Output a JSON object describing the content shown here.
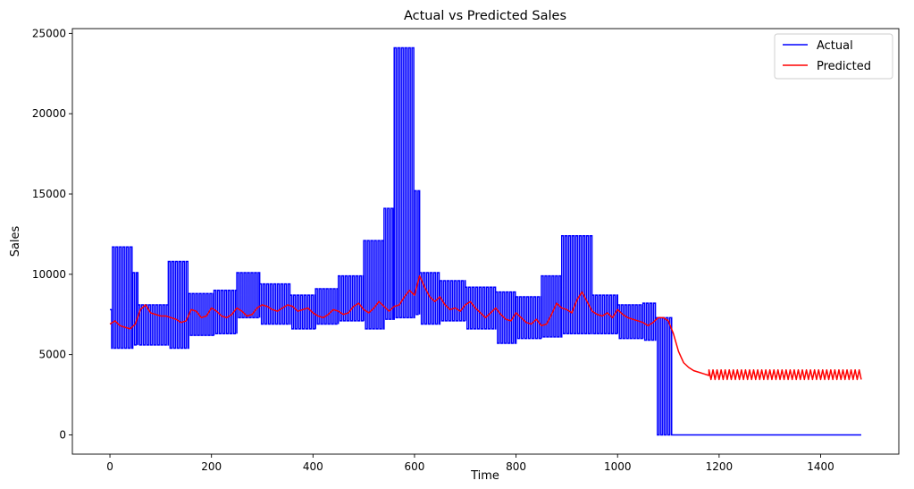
{
  "chart_data": {
    "type": "line",
    "title": "Actual vs Predicted Sales",
    "xlabel": "Time",
    "ylabel": "Sales",
    "xlim": [
      -74,
      1554
    ],
    "ylim": [
      -1200,
      25300
    ],
    "xticks": [
      0,
      200,
      400,
      600,
      800,
      1000,
      1200,
      1400
    ],
    "xtick_labels": [
      "0",
      "200",
      "400",
      "600",
      "800",
      "1000",
      "1200",
      "1400"
    ],
    "yticks": [
      0,
      5000,
      10000,
      15000,
      20000,
      25000
    ],
    "ytick_labels": [
      "0",
      "5000",
      "10000",
      "15000",
      "20000",
      "25000"
    ],
    "grid": false,
    "legend_position": "top-right",
    "series": [
      {
        "name": "Actual",
        "color": "#0000ff",
        "style": "oscillating",
        "period": 7,
        "segments": [
          {
            "x": [
              0,
              5
            ],
            "high": 7800,
            "low": 5400
          },
          {
            "x": [
              5,
              45
            ],
            "high": 11700,
            "low": 5400
          },
          {
            "x": [
              45,
              55
            ],
            "high": 10100,
            "low": 5600
          },
          {
            "x": [
              55,
              115
            ],
            "high": 8100,
            "low": 5600
          },
          {
            "x": [
              115,
              155
            ],
            "high": 10800,
            "low": 5400
          },
          {
            "x": [
              155,
              205
            ],
            "high": 8800,
            "low": 6200
          },
          {
            "x": [
              205,
              250
            ],
            "high": 9000,
            "low": 6300
          },
          {
            "x": [
              250,
              295
            ],
            "high": 10100,
            "low": 7300
          },
          {
            "x": [
              295,
              355
            ],
            "high": 9400,
            "low": 6900
          },
          {
            "x": [
              355,
              405
            ],
            "high": 8700,
            "low": 6600
          },
          {
            "x": [
              405,
              450
            ],
            "high": 9100,
            "low": 6900
          },
          {
            "x": [
              450,
              500
            ],
            "high": 9900,
            "low": 7100
          },
          {
            "x": [
              500,
              540
            ],
            "high": 12100,
            "low": 6600
          },
          {
            "x": [
              540,
              560
            ],
            "high": 14100,
            "low": 7200
          },
          {
            "x": [
              560,
              600
            ],
            "high": 24100,
            "low": 7300
          },
          {
            "x": [
              600,
              610
            ],
            "high": 15200,
            "low": 7500
          },
          {
            "x": [
              610,
              650
            ],
            "high": 10100,
            "low": 6900
          },
          {
            "x": [
              650,
              700
            ],
            "high": 9600,
            "low": 7100
          },
          {
            "x": [
              700,
              760
            ],
            "high": 9200,
            "low": 6600
          },
          {
            "x": [
              760,
              800
            ],
            "high": 8900,
            "low": 5700
          },
          {
            "x": [
              800,
              850
            ],
            "high": 8600,
            "low": 6000
          },
          {
            "x": [
              850,
              890
            ],
            "high": 9900,
            "low": 6100
          },
          {
            "x": [
              890,
              950
            ],
            "high": 12400,
            "low": 6300
          },
          {
            "x": [
              950,
              1000
            ],
            "high": 8700,
            "low": 6300
          },
          {
            "x": [
              1000,
              1050
            ],
            "high": 8100,
            "low": 6000
          },
          {
            "x": [
              1050,
              1075
            ],
            "high": 8200,
            "low": 5900
          },
          {
            "x": [
              1075,
              1110
            ],
            "high": 7300,
            "low": 0
          },
          {
            "x": [
              1110,
              1480
            ],
            "high": 0,
            "low": 0
          }
        ]
      },
      {
        "name": "Predicted",
        "color": "#ff0000",
        "style": "line",
        "x": [
          0,
          10,
          20,
          30,
          40,
          50,
          60,
          70,
          80,
          90,
          100,
          110,
          120,
          130,
          140,
          150,
          160,
          170,
          180,
          190,
          200,
          210,
          220,
          230,
          240,
          250,
          260,
          270,
          280,
          290,
          300,
          310,
          320,
          330,
          340,
          350,
          360,
          370,
          380,
          390,
          400,
          410,
          420,
          430,
          440,
          450,
          460,
          470,
          480,
          490,
          500,
          510,
          520,
          530,
          540,
          550,
          560,
          570,
          580,
          590,
          600,
          610,
          620,
          630,
          640,
          650,
          660,
          670,
          680,
          690,
          700,
          710,
          720,
          730,
          740,
          750,
          760,
          770,
          780,
          790,
          800,
          810,
          820,
          830,
          840,
          850,
          860,
          870,
          880,
          890,
          900,
          910,
          920,
          930,
          940,
          950,
          960,
          970,
          980,
          990,
          1000,
          1010,
          1020,
          1030,
          1040,
          1050,
          1060,
          1070,
          1080,
          1090,
          1100,
          1110,
          1120,
          1130,
          1140,
          1150,
          1160,
          1170,
          1180
        ],
        "y": [
          6900,
          7100,
          6800,
          6700,
          6600,
          6900,
          7800,
          8100,
          7600,
          7500,
          7400,
          7400,
          7300,
          7200,
          7000,
          7100,
          7800,
          7700,
          7300,
          7400,
          7900,
          7700,
          7400,
          7300,
          7500,
          7900,
          7700,
          7400,
          7500,
          7900,
          8100,
          8000,
          7800,
          7700,
          7900,
          8100,
          8000,
          7700,
          7800,
          7900,
          7600,
          7400,
          7300,
          7500,
          7800,
          7700,
          7500,
          7600,
          8000,
          8200,
          7800,
          7600,
          7900,
          8300,
          8000,
          7700,
          8000,
          8100,
          8600,
          9000,
          8700,
          9900,
          9200,
          8600,
          8300,
          8600,
          8100,
          7800,
          7900,
          7700,
          8100,
          8300,
          7900,
          7600,
          7300,
          7600,
          7900,
          7500,
          7200,
          7100,
          7600,
          7300,
          7000,
          6900,
          7200,
          6800,
          6900,
          7500,
          8200,
          7900,
          7800,
          7600,
          8400,
          8900,
          8300,
          7700,
          7500,
          7400,
          7600,
          7300,
          7800,
          7500,
          7300,
          7200,
          7100,
          7000,
          6800,
          7000,
          7300,
          7300,
          7100,
          6300,
          5200,
          4500,
          4200,
          4000,
          3900,
          3800,
          3700
        ],
        "tail": {
          "x": [
            1180,
            1480
          ],
          "high": 4050,
          "low": 3450,
          "period": 8
        }
      }
    ]
  }
}
